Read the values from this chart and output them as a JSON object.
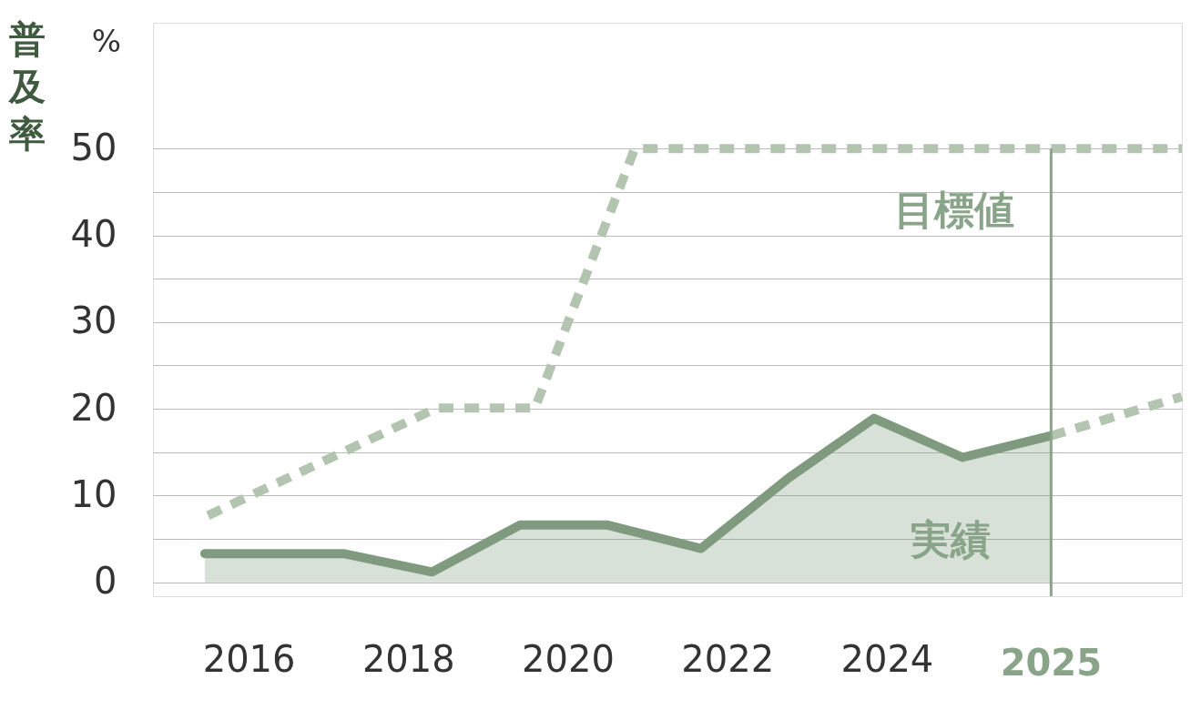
{
  "chart_data": {
    "type": "line",
    "ylabel": "普及率",
    "xlim": [
      2014.8,
      2027.7
    ],
    "ylim": [
      -1.6,
      64.5
    ],
    "xticks": [
      2016,
      2018,
      2020,
      2022,
      2024
    ],
    "yticks": [
      0,
      {
        "value": 5,
        "label": null
      },
      10,
      {
        "value": 15,
        "label": null
      },
      20,
      {
        "value": 25,
        "label": null
      },
      30,
      {
        "value": 35,
        "label": null
      },
      40,
      {
        "value": 45,
        "label": null
      },
      50
    ],
    "grid": "y",
    "legend": false,
    "marker": "none",
    "series": [
      {
        "name": "実績",
        "type": "area",
        "color": "#7f9a7e",
        "line_style": "solid",
        "x": [
          2015.45,
          2017.2,
          2018.3,
          2019.4,
          2020.5,
          2021.67,
          2022.78,
          2023.84,
          2024.95,
          2026.06
        ],
        "values": [
          3.3,
          3.3,
          1.2,
          6.6,
          6.6,
          3.9,
          12.1,
          18.9,
          14.4,
          16.9
        ]
      },
      {
        "name": "目標値",
        "color": "#b3c5b0",
        "line_style": "dashed",
        "x": [
          2015.49,
          2018.36,
          2019.59,
          2020.84,
          2027.7
        ],
        "values": [
          7.7,
          20.1,
          20.1,
          50,
          50
        ]
      },
      {
        "color": "#b3c5b0",
        "line_style": "dashed",
        "x": [
          2026.06,
          2027.7
        ],
        "values": [
          16.9,
          21.4
        ]
      }
    ],
    "ref_lines": [
      {
        "axis": "x",
        "value": 2026.06,
        "label": null,
        "color": "#8aa48a",
        "line_style": "solid"
      }
    ],
    "annotations": [
      "%",
      "2025"
    ]
  }
}
